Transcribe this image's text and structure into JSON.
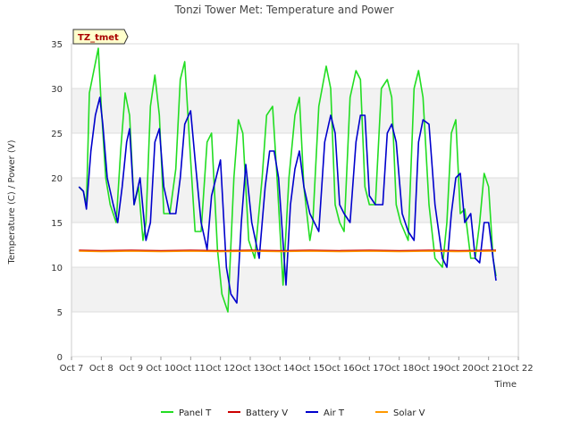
{
  "chart_data": {
    "type": "line",
    "title": "Tonzi Tower Met: Temperature and Power",
    "xlabel": "Time",
    "ylabel": "Temperature (C) / Power (V)",
    "badge": "TZ_tmet",
    "xlim": [
      7,
      22
    ],
    "ylim": [
      0,
      35
    ],
    "x_ticks": [
      7,
      8,
      9,
      10,
      11,
      12,
      13,
      14,
      15,
      16,
      17,
      18,
      19,
      20,
      21,
      22
    ],
    "x_tick_labels": [
      "Oct 7",
      "Oct 8",
      "Oct 9",
      "Oct 10",
      "Oct 11",
      "Oct 12",
      "Oct 13",
      "Oct 14",
      "Oct 15",
      "Oct 16",
      "Oct 17",
      "Oct 18",
      "Oct 19",
      "Oct 20",
      "Oct 21",
      "Oct 22"
    ],
    "y_ticks": [
      0,
      5,
      10,
      15,
      20,
      25,
      30,
      35
    ],
    "y_tick_labels": [
      "0",
      "5",
      "10",
      "15",
      "20",
      "25",
      "30",
      "35"
    ],
    "bands": [
      [
        5,
        10
      ],
      [
        15,
        20
      ],
      [
        25,
        30
      ]
    ],
    "series": [
      {
        "name": "Panel T",
        "color": "#22dd22",
        "x": [
          7.25,
          7.4,
          7.5,
          7.6,
          7.75,
          7.9,
          8.0,
          8.15,
          8.3,
          8.5,
          8.65,
          8.8,
          8.95,
          9.1,
          9.25,
          9.4,
          9.5,
          9.65,
          9.8,
          9.95,
          10.1,
          10.3,
          10.5,
          10.65,
          10.8,
          11.0,
          11.15,
          11.35,
          11.55,
          11.7,
          11.9,
          12.05,
          12.25,
          12.45,
          12.6,
          12.75,
          12.95,
          13.15,
          13.4,
          13.55,
          13.75,
          13.9,
          14.1,
          14.3,
          14.5,
          14.65,
          14.8,
          15.0,
          15.1,
          15.3,
          15.55,
          15.7,
          15.85,
          16.0,
          16.15,
          16.35,
          16.55,
          16.7,
          16.85,
          17.0,
          17.2,
          17.4,
          17.6,
          17.75,
          17.9,
          18.05,
          18.3,
          18.5,
          18.65,
          18.8,
          19.0,
          19.2,
          19.45,
          19.6,
          19.75,
          19.9,
          20.05,
          20.2,
          20.4,
          20.55,
          20.7,
          20.85,
          21.0,
          21.15,
          21.25
        ],
        "values": [
          19,
          18.5,
          17,
          29.5,
          32,
          34.5,
          28,
          20,
          17,
          15,
          23,
          29.5,
          27,
          17,
          19,
          13,
          15,
          28,
          31.5,
          27,
          16,
          16,
          21,
          31,
          33,
          22,
          14,
          14,
          24,
          25,
          12,
          7,
          5,
          20,
          26.5,
          25,
          13,
          11,
          20,
          27,
          28,
          20,
          8,
          20,
          27,
          29,
          19,
          13,
          15,
          28,
          32.5,
          30,
          17,
          15,
          14,
          29,
          32,
          31,
          19,
          17,
          17,
          30,
          31,
          29,
          17,
          15,
          13,
          30,
          32,
          29,
          17,
          11,
          10,
          15,
          25,
          26.5,
          16,
          16.5,
          11,
          11,
          15,
          20.5,
          19,
          11,
          9
        ]
      },
      {
        "name": "Battery V",
        "color": "#cc0000",
        "x": [
          7.25,
          8,
          9,
          10,
          11,
          12,
          13,
          14,
          15,
          16,
          17,
          18,
          19,
          20,
          21,
          21.25
        ],
        "values": [
          11.9,
          11.85,
          11.9,
          11.85,
          11.9,
          11.85,
          11.9,
          11.85,
          11.9,
          11.85,
          11.9,
          11.85,
          11.9,
          11.85,
          11.9,
          11.9
        ]
      },
      {
        "name": "Air T",
        "color": "#0000cc",
        "x": [
          7.25,
          7.4,
          7.5,
          7.65,
          7.8,
          7.95,
          8.05,
          8.2,
          8.4,
          8.55,
          8.7,
          8.85,
          8.95,
          9.1,
          9.3,
          9.5,
          9.65,
          9.8,
          9.95,
          10.1,
          10.3,
          10.5,
          10.65,
          10.8,
          11.0,
          11.15,
          11.35,
          11.55,
          11.7,
          11.85,
          12.0,
          12.2,
          12.35,
          12.55,
          12.7,
          12.85,
          13.05,
          13.3,
          13.5,
          13.65,
          13.8,
          13.95,
          14.2,
          14.35,
          14.5,
          14.65,
          14.8,
          15.0,
          15.3,
          15.5,
          15.7,
          15.85,
          16.0,
          16.15,
          16.35,
          16.55,
          16.7,
          16.85,
          17.0,
          17.2,
          17.45,
          17.6,
          17.75,
          17.9,
          18.1,
          18.3,
          18.5,
          18.65,
          18.8,
          19.0,
          19.2,
          19.45,
          19.6,
          19.75,
          19.9,
          20.05,
          20.2,
          20.4,
          20.55,
          20.7,
          20.85,
          21.0,
          21.15,
          21.25
        ],
        "values": [
          19,
          18.5,
          16.5,
          23,
          27,
          29,
          26,
          20,
          17,
          15,
          19,
          24,
          25.5,
          17,
          20,
          13,
          15,
          24,
          25.5,
          19,
          16,
          16,
          20,
          26,
          27.5,
          22,
          15,
          12,
          18,
          20,
          22,
          10,
          7,
          6,
          15,
          21.5,
          15,
          11,
          19,
          23,
          23,
          20,
          8,
          17,
          21,
          23,
          19,
          16,
          14,
          24,
          27,
          25,
          17,
          16,
          15,
          24,
          27,
          27,
          18,
          17,
          17,
          25,
          26,
          24,
          16,
          14,
          13,
          24,
          26.5,
          26,
          17,
          11,
          10,
          16,
          20,
          20.5,
          15,
          16,
          11,
          10.5,
          15,
          15,
          11,
          8.5
        ]
      },
      {
        "name": "Solar V",
        "color": "#ff9900",
        "x": [
          7.25,
          8,
          9,
          10,
          11,
          12,
          13,
          14,
          15,
          16,
          17,
          18,
          19,
          20,
          21,
          21.25
        ],
        "values": [
          11.8,
          11.75,
          11.8,
          11.75,
          11.8,
          11.75,
          11.8,
          11.75,
          11.8,
          11.75,
          11.8,
          11.75,
          11.8,
          11.75,
          11.8,
          11.8
        ]
      }
    ]
  }
}
